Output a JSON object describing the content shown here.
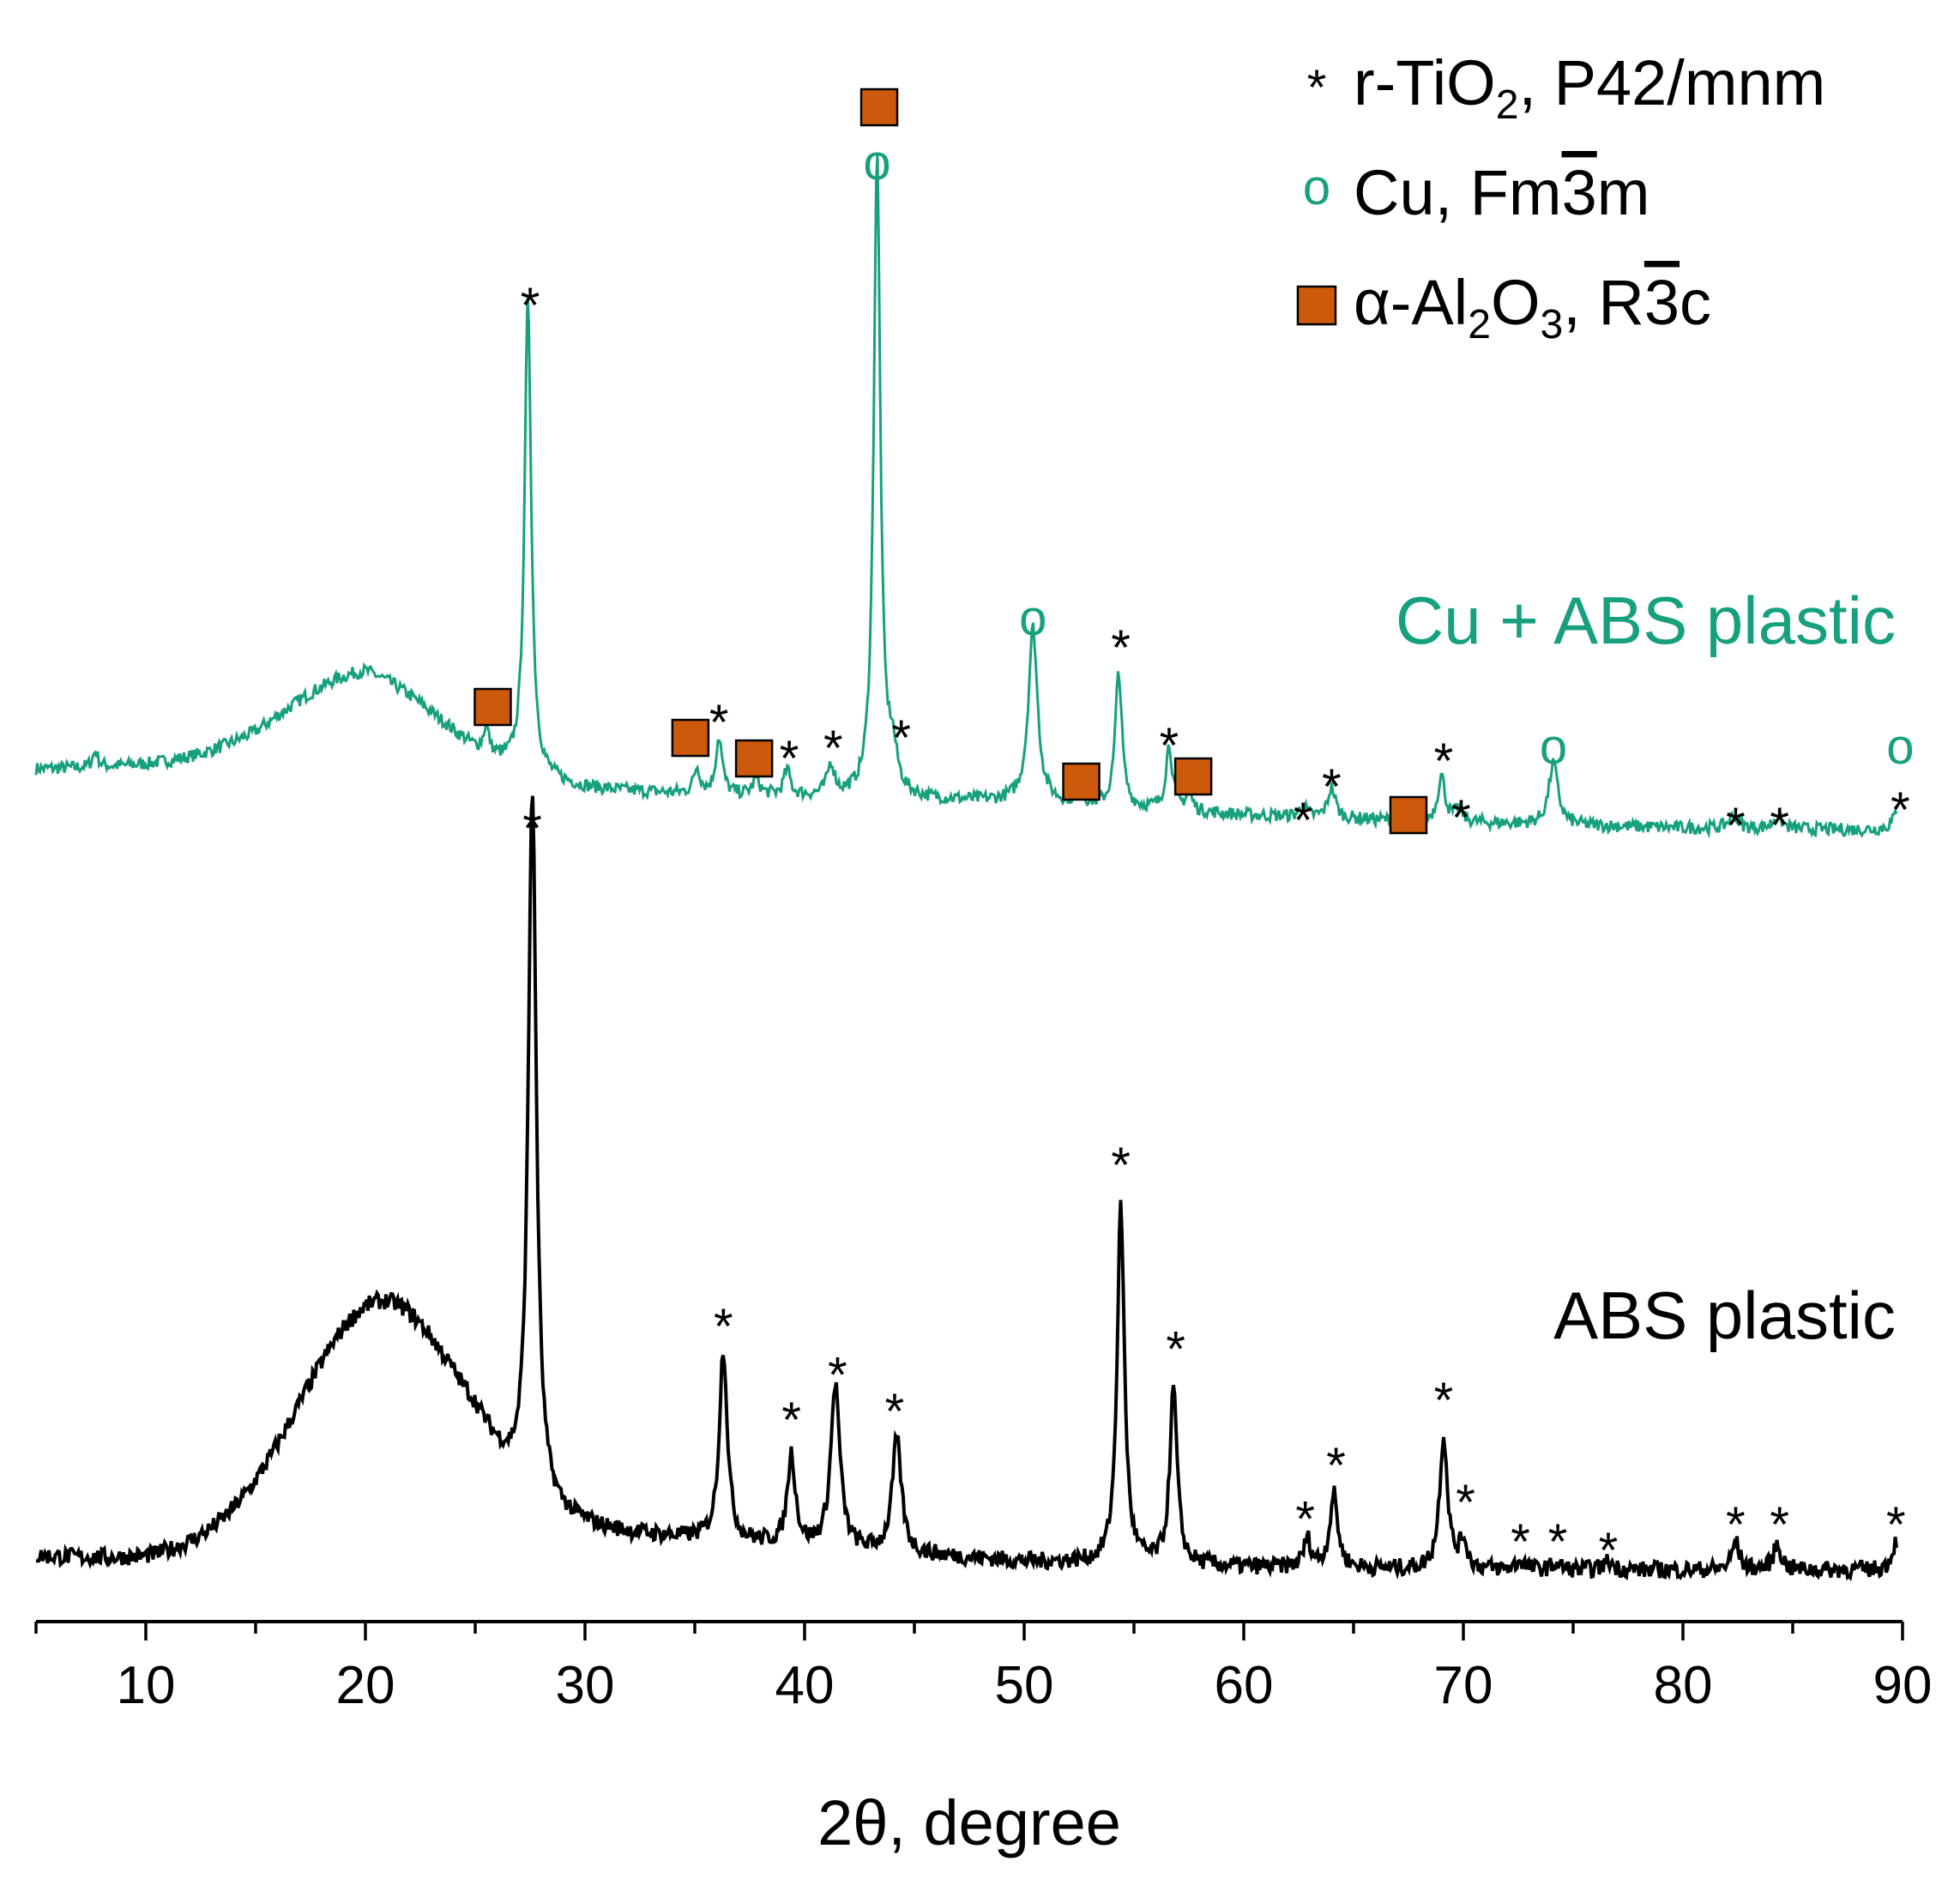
{
  "chart_data": {
    "type": "line",
    "title": "",
    "xlabel": "2θ, degree",
    "ylabel": "",
    "xlim": [
      5,
      90
    ],
    "xticks": [
      10,
      20,
      30,
      40,
      50,
      60,
      70,
      80,
      90
    ],
    "xtick_labels": [
      "10",
      "20",
      "30",
      "40",
      "50",
      "60",
      "70",
      "80",
      "90"
    ],
    "y_axis_shown": false,
    "grid": false,
    "legend_position": "top-right",
    "colors": {
      "cu_abs": "#17a07e",
      "abs": "#000000",
      "al2o3": "#cc5a0a"
    },
    "legend": [
      {
        "symbol": "asterisk",
        "label": "r-TiO",
        "sub": "2",
        "rest": ", P42/mnm"
      },
      {
        "symbol": "circle",
        "label": "Cu, Fm",
        "over": "3",
        "rest": "m"
      },
      {
        "symbol": "square",
        "label": "α-Al",
        "sub": "2",
        "mid": "O",
        "sub2": "3",
        "rest2": ", R",
        "over": "3",
        "rest": "c"
      }
    ],
    "series": [
      {
        "name": "Cu + ABS plastic",
        "color": "#17a07e",
        "background": [
          [
            5,
            0.28
          ],
          [
            15,
            0.3
          ],
          [
            20,
            0.38
          ],
          [
            25,
            0.25
          ],
          [
            30,
            0.2
          ],
          [
            35,
            0.18
          ],
          [
            40,
            0.17
          ],
          [
            50,
            0.15
          ],
          [
            60,
            0.1
          ],
          [
            70,
            0.07
          ],
          [
            80,
            0.05
          ],
          [
            90,
            0.04
          ]
        ],
        "amorphous_peak": {
          "x": 20,
          "height": 0.0,
          "width": 0
        },
        "peaks": [
          {
            "x": 7.7,
            "h": 0.06,
            "w": 0.15
          },
          {
            "x": 25.5,
            "h": 0.1,
            "w": 0.15
          },
          {
            "x": 27.4,
            "h": 1.85,
            "w": 0.18
          },
          {
            "x": 35.1,
            "h": 0.1,
            "w": 0.18
          },
          {
            "x": 36.1,
            "h": 0.22,
            "w": 0.18
          },
          {
            "x": 37.8,
            "h": 0.06,
            "w": 0.2
          },
          {
            "x": 39.2,
            "h": 0.1,
            "w": 0.18
          },
          {
            "x": 41.2,
            "h": 0.12,
            "w": 0.2
          },
          {
            "x": 43.3,
            "h": 2.5,
            "w": 0.18
          },
          {
            "x": 44.0,
            "h": 0.15,
            "w": 0.25
          },
          {
            "x": 50.4,
            "h": 0.68,
            "w": 0.25
          },
          {
            "x": 52.5,
            "h": 0.05,
            "w": 0.2
          },
          {
            "x": 54.3,
            "h": 0.53,
            "w": 0.18
          },
          {
            "x": 56.6,
            "h": 0.25,
            "w": 0.18
          },
          {
            "x": 57.5,
            "h": 0.06,
            "w": 0.2
          },
          {
            "x": 62.7,
            "h": 0.04,
            "w": 0.2
          },
          {
            "x": 64.0,
            "h": 0.12,
            "w": 0.2
          },
          {
            "x": 69.0,
            "h": 0.18,
            "w": 0.2
          },
          {
            "x": 69.8,
            "h": 0.05,
            "w": 0.2
          },
          {
            "x": 74.1,
            "h": 0.24,
            "w": 0.25
          },
          {
            "x": 82.3,
            "h": 0.05,
            "w": 0.25
          },
          {
            "x": 84.3,
            "h": 0.05,
            "w": 0.25
          },
          {
            "x": 89.9,
            "h": 0.12,
            "w": 0.25
          }
        ],
        "markers": [
          {
            "x": 25.8,
            "y_label": 0.52,
            "symbol": "square"
          },
          {
            "x": 27.5,
            "y_label": 2.08,
            "symbol": "asterisk"
          },
          {
            "x": 34.8,
            "y_label": 0.4,
            "symbol": "square"
          },
          {
            "x": 36.1,
            "y_label": 0.46,
            "symbol": "asterisk"
          },
          {
            "x": 37.7,
            "y_label": 0.32,
            "symbol": "square"
          },
          {
            "x": 39.3,
            "y_label": 0.32,
            "symbol": "asterisk"
          },
          {
            "x": 41.3,
            "y_label": 0.36,
            "symbol": "asterisk"
          },
          {
            "x": 43.3,
            "y_label": 2.63,
            "symbol": "circle"
          },
          {
            "x": 43.4,
            "y_label": 2.85,
            "symbol": "square"
          },
          {
            "x": 44.4,
            "y_label": 0.4,
            "symbol": "asterisk"
          },
          {
            "x": 50.4,
            "y_label": 0.86,
            "symbol": "circle"
          },
          {
            "x": 52.6,
            "y_label": 0.23,
            "symbol": "square"
          },
          {
            "x": 54.4,
            "y_label": 0.75,
            "symbol": "asterisk"
          },
          {
            "x": 56.6,
            "y_label": 0.37,
            "symbol": "asterisk"
          },
          {
            "x": 57.7,
            "y_label": 0.25,
            "symbol": "square"
          },
          {
            "x": 62.7,
            "y_label": 0.08,
            "symbol": "asterisk"
          },
          {
            "x": 64.0,
            "y_label": 0.21,
            "symbol": "asterisk"
          },
          {
            "x": 67.5,
            "y_label": 0.1,
            "symbol": "square"
          },
          {
            "x": 69.1,
            "y_label": 0.31,
            "symbol": "asterisk"
          },
          {
            "x": 69.9,
            "y_label": 0.09,
            "symbol": "asterisk"
          },
          {
            "x": 74.1,
            "y_label": 0.36,
            "symbol": "circle"
          },
          {
            "x": 82.4,
            "y_label": 0.06,
            "symbol": "asterisk"
          },
          {
            "x": 84.4,
            "y_label": 0.06,
            "symbol": "asterisk"
          },
          {
            "x": 89.9,
            "y_label": 0.12,
            "symbol": "asterisk"
          },
          {
            "x": 89.9,
            "y_label": 0.36,
            "symbol": "circle"
          }
        ]
      },
      {
        "name": "ABS plastic",
        "color": "#000000",
        "background": [
          [
            5,
            0.05
          ],
          [
            10,
            0.04
          ],
          [
            15,
            0.08
          ],
          [
            25,
            0.2
          ],
          [
            27,
            0.15
          ],
          [
            30,
            0.14
          ],
          [
            40,
            0.08
          ],
          [
            50,
            0.03
          ],
          [
            60,
            0.01
          ],
          [
            70,
            0.0
          ],
          [
            80,
            0.0
          ],
          [
            90,
            0.0
          ]
        ],
        "amorphous_peak": {
          "x": 20.6,
          "height": 0.8,
          "width": 3.6
        },
        "peaks": [
          {
            "x": 27.6,
            "h": 2.5,
            "w": 0.22
          },
          {
            "x": 36.3,
            "h": 0.68,
            "w": 0.22
          },
          {
            "x": 39.4,
            "h": 0.32,
            "w": 0.22
          },
          {
            "x": 41.4,
            "h": 0.58,
            "w": 0.25
          },
          {
            "x": 44.2,
            "h": 0.4,
            "w": 0.25
          },
          {
            "x": 54.4,
            "h": 1.26,
            "w": 0.2
          },
          {
            "x": 56.8,
            "h": 0.62,
            "w": 0.2
          },
          {
            "x": 62.9,
            "h": 0.1,
            "w": 0.2
          },
          {
            "x": 64.1,
            "h": 0.26,
            "w": 0.22
          },
          {
            "x": 69.1,
            "h": 0.47,
            "w": 0.22
          },
          {
            "x": 70.0,
            "h": 0.1,
            "w": 0.2
          },
          {
            "x": 72.6,
            "h": 0.03,
            "w": 0.25
          },
          {
            "x": 74.2,
            "h": 0.02,
            "w": 0.25
          },
          {
            "x": 76.6,
            "h": 0.03,
            "w": 0.25
          },
          {
            "x": 82.4,
            "h": 0.1,
            "w": 0.2
          },
          {
            "x": 84.3,
            "h": 0.09,
            "w": 0.22
          },
          {
            "x": 89.7,
            "h": 0.1,
            "w": 0.22
          }
        ],
        "markers": [
          {
            "x": 27.6,
            "y_label": 2.62,
            "symbol": "asterisk"
          },
          {
            "x": 36.3,
            "y_label": 0.86,
            "symbol": "asterisk"
          },
          {
            "x": 39.4,
            "y_label": 0.53,
            "symbol": "asterisk"
          },
          {
            "x": 41.5,
            "y_label": 0.69,
            "symbol": "asterisk"
          },
          {
            "x": 44.1,
            "y_label": 0.56,
            "symbol": "asterisk"
          },
          {
            "x": 54.4,
            "y_label": 1.43,
            "symbol": "asterisk"
          },
          {
            "x": 56.9,
            "y_label": 0.78,
            "symbol": "asterisk"
          },
          {
            "x": 62.8,
            "y_label": 0.18,
            "symbol": "asterisk"
          },
          {
            "x": 64.2,
            "y_label": 0.37,
            "symbol": "asterisk"
          },
          {
            "x": 69.1,
            "y_label": 0.6,
            "symbol": "asterisk"
          },
          {
            "x": 70.1,
            "y_label": 0.24,
            "symbol": "asterisk"
          },
          {
            "x": 72.6,
            "y_label": 0.1,
            "symbol": "asterisk"
          },
          {
            "x": 74.3,
            "y_label": 0.1,
            "symbol": "asterisk"
          },
          {
            "x": 76.6,
            "y_label": 0.07,
            "symbol": "asterisk"
          },
          {
            "x": 82.4,
            "y_label": 0.16,
            "symbol": "asterisk"
          },
          {
            "x": 84.4,
            "y_label": 0.16,
            "symbol": "asterisk"
          },
          {
            "x": 89.7,
            "y_label": 0.16,
            "symbol": "asterisk"
          }
        ]
      }
    ],
    "series_labels": [
      {
        "text": "Cu + ABS plastic",
        "color": "#17a07e"
      },
      {
        "text": "ABS plastic",
        "color": "#000000"
      }
    ]
  }
}
